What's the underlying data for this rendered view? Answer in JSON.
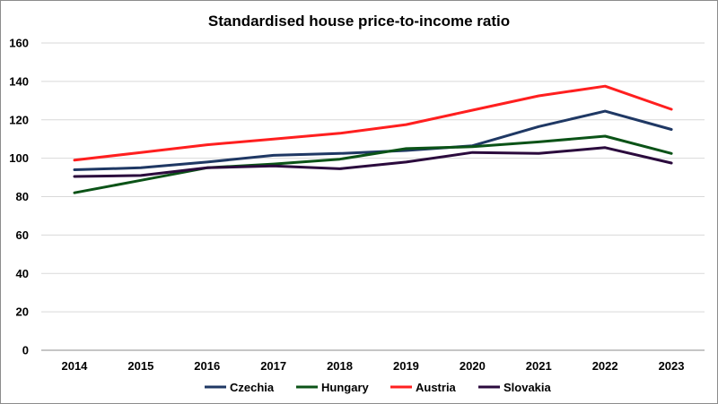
{
  "chart_data": {
    "type": "line",
    "title": "Standardised house price-to-income ratio",
    "categories": [
      "2014",
      "2015",
      "2016",
      "2017",
      "2018",
      "2019",
      "2020",
      "2021",
      "2022",
      "2023"
    ],
    "ylim": [
      0,
      160
    ],
    "yticks": [
      0,
      20,
      40,
      60,
      80,
      100,
      120,
      140,
      160
    ],
    "grid": true,
    "legend": "bottom",
    "xlabel": "",
    "ylabel": "",
    "series": [
      {
        "name": "Czechia",
        "color": "#1f3864",
        "values": [
          94,
          95,
          98,
          101.5,
          102.5,
          104,
          106.5,
          116.5,
          124.5,
          115
        ]
      },
      {
        "name": "Hungary",
        "color": "#0b5317",
        "values": [
          82,
          88.5,
          95,
          97,
          99.5,
          105,
          106,
          108.5,
          111.5,
          102.5
        ]
      },
      {
        "name": "Austria",
        "color": "#ff1f1f",
        "values": [
          99,
          103,
          107,
          110,
          113,
          117.5,
          125,
          132.5,
          137.5,
          125.5
        ]
      },
      {
        "name": "Slovakia",
        "color": "#2b0a3d",
        "values": [
          90.5,
          91,
          95,
          96,
          94.5,
          98,
          103,
          102.5,
          105.5,
          97.5
        ]
      }
    ]
  }
}
